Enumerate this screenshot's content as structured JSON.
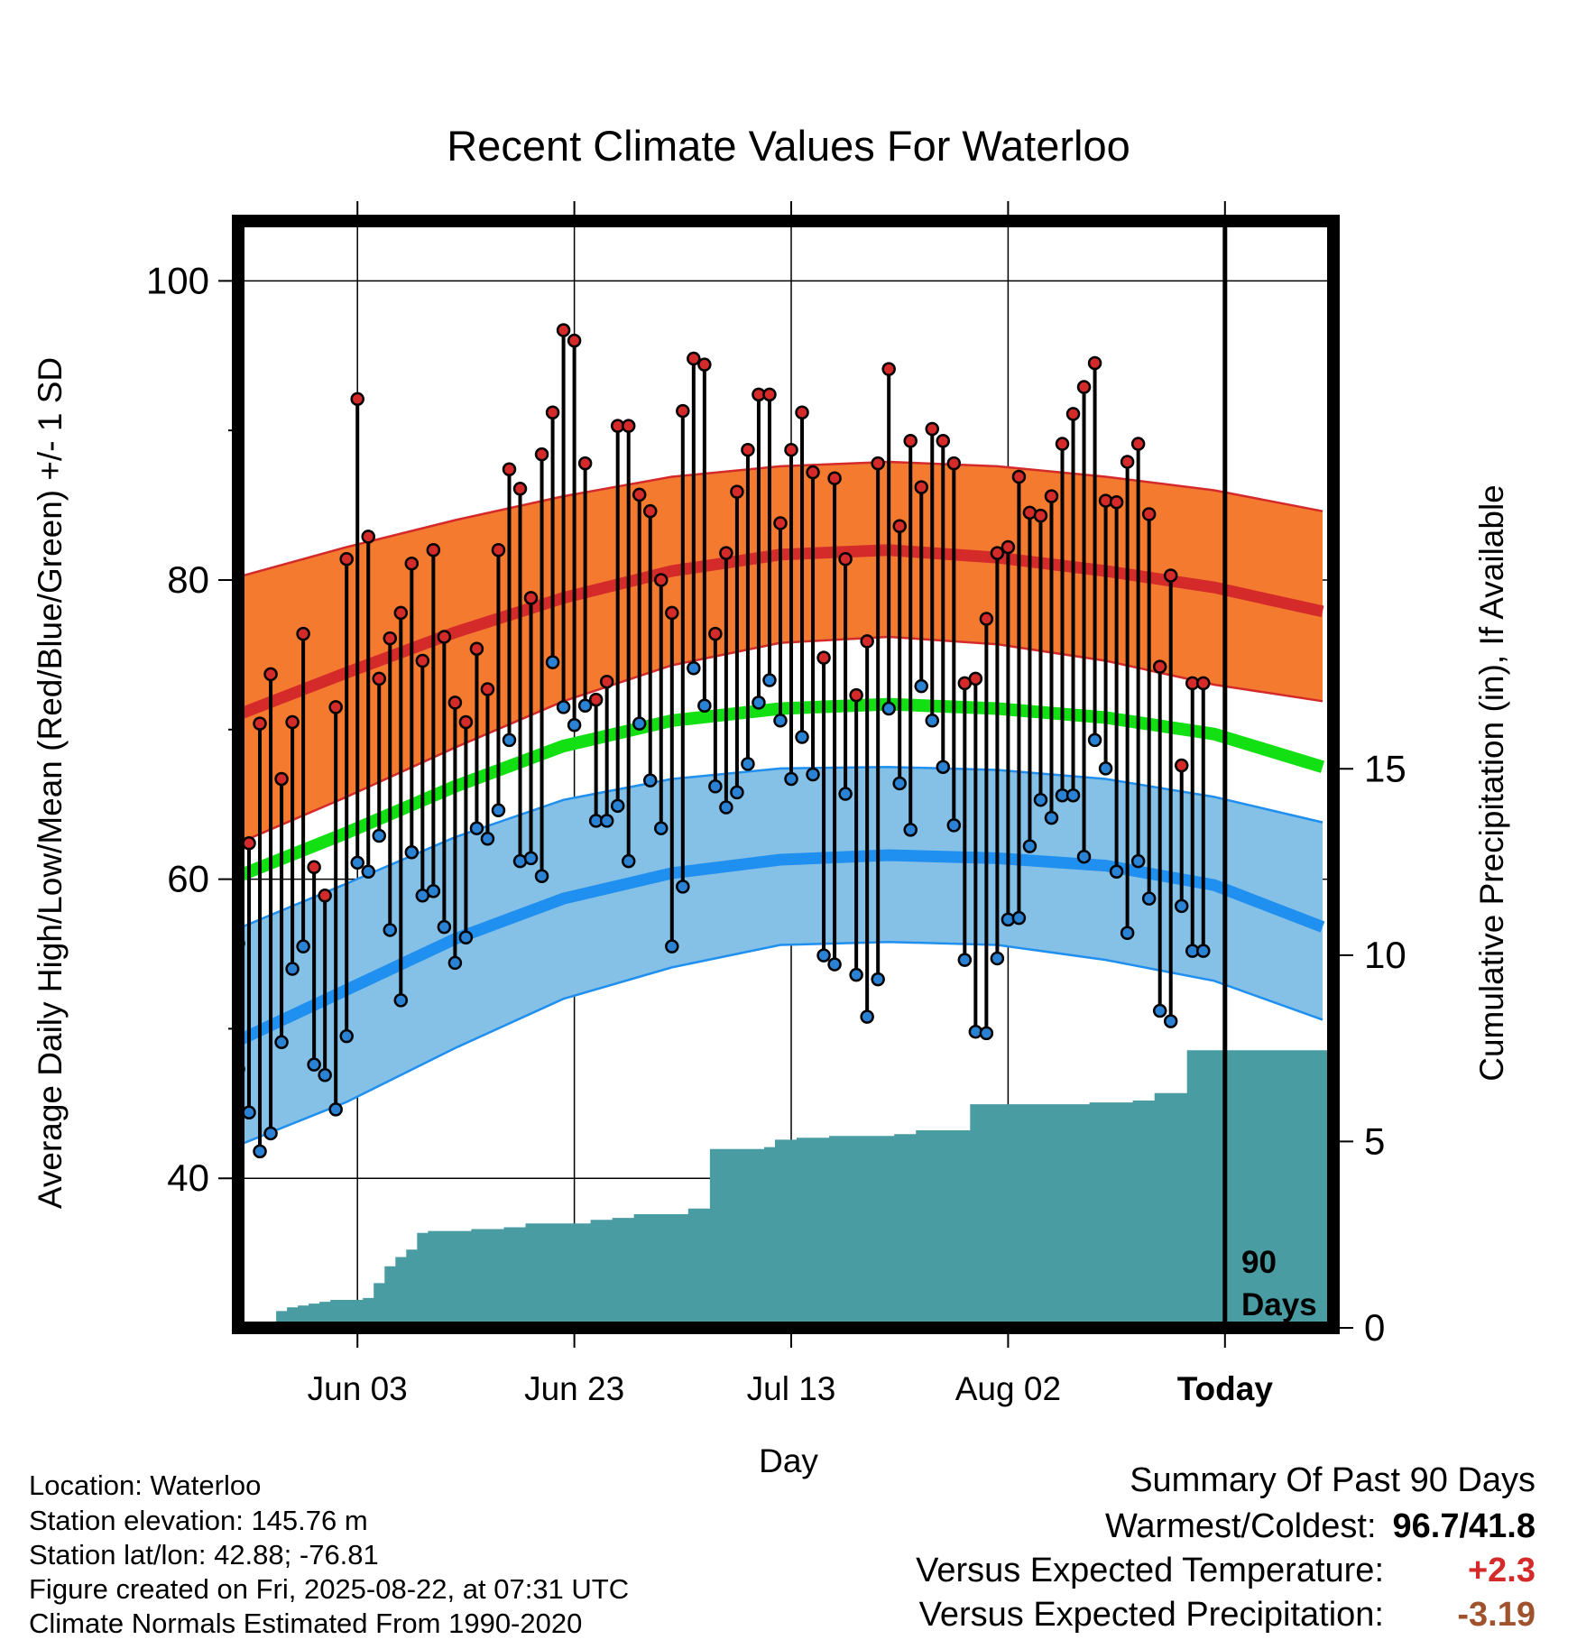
{
  "title": "Recent Climate Values For Waterloo",
  "ylabel_left": "Average Daily High/Low/Mean (Red/Blue/Green) +/- 1 SD",
  "ylabel_right": "Cumulative Precipitation (in), If Available",
  "xlabel": "Day",
  "today_label": "Today",
  "window_label_1": "90",
  "window_label_2": "Days",
  "metadata": {
    "location": "Location: Waterloo",
    "elevation": "Station elevation: 145.76 m",
    "latlon": "Station lat/lon: 42.88; -76.81",
    "created": "Figure created on Fri, 2025-08-22, at 07:31 UTC",
    "normals": "Climate Normals Estimated From 1990-2020"
  },
  "summary": {
    "heading": "Summary Of Past 90 Days",
    "warmcold_label": "Warmest/Coldest:",
    "warmcold_value": "96.7/41.8",
    "temp_label": "Versus Expected Temperature:",
    "temp_value": "+2.3",
    "precip_label": "Versus Expected Precipitation:",
    "precip_value": "-3.19"
  },
  "colors": {
    "high_band": "#f47a30",
    "high_line": "#d42a2a",
    "low_band": "#85c0e6",
    "low_line": "#1f8ff0",
    "mean_line": "#12e012",
    "precip_fill": "#4a9ca3",
    "high_marker": "#d42a2a",
    "low_marker": "#2a82d4",
    "temp_anomaly": "#d42a2a",
    "precip_anomaly": "#a0522d"
  },
  "chart_data": {
    "type": "line",
    "x_axis": {
      "start": "2025-05-23",
      "end": "2025-09-01",
      "ticks": [
        "Jun 03",
        "Jun 23",
        "Jul 13",
        "Aug 02",
        "Today"
      ]
    },
    "y_left": {
      "ylim": [
        30,
        104
      ],
      "ticks": [
        40,
        60,
        80,
        100
      ]
    },
    "y_right": {
      "ylim": [
        0,
        29.7
      ],
      "ticks": [
        0,
        5,
        10,
        15
      ]
    },
    "normals": {
      "dates": [
        "2025-05-23",
        "2025-06-02",
        "2025-06-12",
        "2025-06-22",
        "2025-07-02",
        "2025-07-12",
        "2025-07-22",
        "2025-08-01",
        "2025-08-11",
        "2025-08-21",
        "2025-08-31"
      ],
      "high_mean": [
        71.0,
        73.8,
        76.5,
        78.8,
        80.6,
        81.7,
        82.0,
        81.5,
        80.6,
        79.5,
        77.9
      ],
      "high_plus_sd": [
        80.2,
        82.2,
        84.0,
        85.6,
        86.9,
        87.6,
        87.9,
        87.6,
        86.9,
        86.0,
        84.6
      ],
      "high_minus_sd": [
        62.4,
        65.5,
        68.8,
        71.9,
        74.3,
        75.8,
        76.2,
        75.7,
        74.6,
        73.0,
        71.9
      ],
      "mean": [
        60.2,
        63.1,
        66.2,
        68.9,
        70.6,
        71.4,
        71.7,
        71.4,
        70.8,
        69.7,
        67.5
      ],
      "low_mean": [
        49.2,
        52.6,
        56.0,
        58.7,
        60.4,
        61.3,
        61.6,
        61.4,
        60.9,
        59.6,
        56.8
      ],
      "low_plus_sd": [
        56.7,
        59.7,
        62.8,
        65.3,
        66.7,
        67.4,
        67.5,
        67.3,
        66.7,
        65.5,
        63.8
      ],
      "low_minus_sd": [
        42.2,
        45.1,
        48.7,
        52.0,
        54.1,
        55.6,
        55.8,
        55.6,
        54.6,
        53.2,
        50.6
      ]
    },
    "observed_dates": [
      "2025-05-23",
      "2025-05-24",
      "2025-05-25",
      "2025-05-26",
      "2025-05-27",
      "2025-05-28",
      "2025-05-29",
      "2025-05-30",
      "2025-05-31",
      "2025-06-01",
      "2025-06-02",
      "2025-06-03",
      "2025-06-04",
      "2025-06-05",
      "2025-06-06",
      "2025-06-07",
      "2025-06-08",
      "2025-06-09",
      "2025-06-10",
      "2025-06-11",
      "2025-06-12",
      "2025-06-13",
      "2025-06-14",
      "2025-06-15",
      "2025-06-16",
      "2025-06-17",
      "2025-06-18",
      "2025-06-19",
      "2025-06-20",
      "2025-06-21",
      "2025-06-22",
      "2025-06-23",
      "2025-06-24",
      "2025-06-25",
      "2025-06-26",
      "2025-06-27",
      "2025-06-28",
      "2025-06-29",
      "2025-06-30",
      "2025-07-01",
      "2025-07-02",
      "2025-07-03",
      "2025-07-04",
      "2025-07-05",
      "2025-07-06",
      "2025-07-07",
      "2025-07-08",
      "2025-07-09",
      "2025-07-10",
      "2025-07-11",
      "2025-07-12",
      "2025-07-13",
      "2025-07-14",
      "2025-07-15",
      "2025-07-16",
      "2025-07-17",
      "2025-07-18",
      "2025-07-19",
      "2025-07-20",
      "2025-07-21",
      "2025-07-22",
      "2025-07-23",
      "2025-07-24",
      "2025-07-25",
      "2025-07-26",
      "2025-07-27",
      "2025-07-28",
      "2025-07-29",
      "2025-07-30",
      "2025-07-31",
      "2025-08-01",
      "2025-08-02",
      "2025-08-03",
      "2025-08-04",
      "2025-08-05",
      "2025-08-06",
      "2025-08-07",
      "2025-08-08",
      "2025-08-09",
      "2025-08-10",
      "2025-08-11",
      "2025-08-12",
      "2025-08-13",
      "2025-08-14",
      "2025-08-15",
      "2025-08-16",
      "2025-08-17",
      "2025-08-18",
      "2025-08-19",
      "2025-08-20"
    ],
    "observed_high": [
      55.7,
      62.4,
      70.4,
      73.7,
      66.7,
      70.5,
      76.4,
      60.8,
      58.9,
      71.5,
      81.4,
      92.1,
      82.9,
      73.4,
      76.1,
      77.8,
      81.1,
      74.6,
      82.0,
      76.2,
      71.8,
      70.5,
      75.4,
      72.7,
      82.0,
      87.4,
      86.1,
      78.8,
      88.4,
      91.2,
      96.7,
      96.0,
      87.8,
      72.0,
      73.2,
      90.3,
      90.3,
      85.7,
      84.6,
      80.0,
      77.8,
      91.3,
      94.8,
      94.4,
      76.4,
      81.8,
      85.9,
      88.7,
      92.4,
      92.4,
      83.8,
      88.7,
      91.2,
      87.2,
      74.8,
      86.8,
      81.4,
      72.3,
      75.9,
      87.8,
      94.1,
      83.6,
      89.3,
      86.2,
      90.1,
      89.3,
      87.8,
      73.1,
      73.4,
      77.4,
      81.8,
      82.2,
      86.9,
      84.5,
      84.3,
      85.6,
      89.1,
      91.1,
      92.9,
      94.5,
      85.3,
      85.2,
      87.9,
      89.1,
      84.4,
      74.2,
      80.3,
      67.6,
      73.1,
      73.1
    ],
    "observed_low": [
      47.3,
      44.4,
      41.8,
      43.0,
      49.1,
      54.0,
      55.5,
      47.6,
      46.9,
      44.6,
      49.5,
      61.1,
      60.5,
      62.9,
      56.6,
      51.9,
      61.8,
      58.9,
      59.2,
      56.8,
      54.4,
      56.1,
      63.4,
      62.7,
      64.6,
      69.3,
      61.2,
      61.4,
      60.2,
      74.5,
      71.5,
      70.3,
      71.6,
      63.9,
      63.9,
      64.9,
      61.2,
      70.4,
      66.6,
      63.4,
      55.5,
      59.5,
      74.1,
      71.6,
      66.2,
      64.8,
      65.8,
      67.7,
      71.8,
      73.3,
      70.6,
      66.7,
      69.5,
      67.0,
      54.9,
      54.3,
      65.7,
      53.6,
      50.8,
      53.3,
      71.4,
      66.4,
      63.3,
      72.9,
      70.6,
      67.5,
      63.6,
      54.6,
      49.8,
      49.7,
      54.7,
      57.3,
      57.4,
      62.2,
      65.3,
      64.1,
      65.6,
      65.6,
      61.5,
      69.3,
      67.4,
      60.5,
      56.4,
      61.2,
      58.7,
      51.2,
      50.5,
      58.2,
      55.2,
      55.2
    ],
    "cumulative_precip": [
      0.0,
      0.0,
      0.0,
      0.0,
      0.45,
      0.55,
      0.6,
      0.65,
      0.7,
      0.75,
      0.75,
      0.75,
      0.8,
      1.2,
      1.65,
      1.9,
      2.1,
      2.55,
      2.6,
      2.6,
      2.6,
      2.6,
      2.65,
      2.65,
      2.65,
      2.7,
      2.7,
      2.8,
      2.8,
      2.8,
      2.8,
      2.8,
      2.8,
      2.9,
      2.9,
      2.95,
      2.95,
      3.05,
      3.05,
      3.05,
      3.05,
      3.05,
      3.2,
      3.2,
      4.8,
      4.8,
      4.8,
      4.8,
      4.8,
      4.85,
      5.05,
      5.05,
      5.1,
      5.1,
      5.1,
      5.15,
      5.15,
      5.15,
      5.15,
      5.15,
      5.15,
      5.2,
      5.2,
      5.3,
      5.3,
      5.3,
      5.3,
      5.3,
      6.0,
      6.0,
      6.0,
      6.0,
      6.0,
      6.0,
      6.0,
      6.0,
      6.0,
      6.0,
      6.0,
      6.05,
      6.05,
      6.05,
      6.05,
      6.1,
      6.1,
      6.3,
      6.3,
      6.3,
      7.45,
      7.45
    ]
  }
}
